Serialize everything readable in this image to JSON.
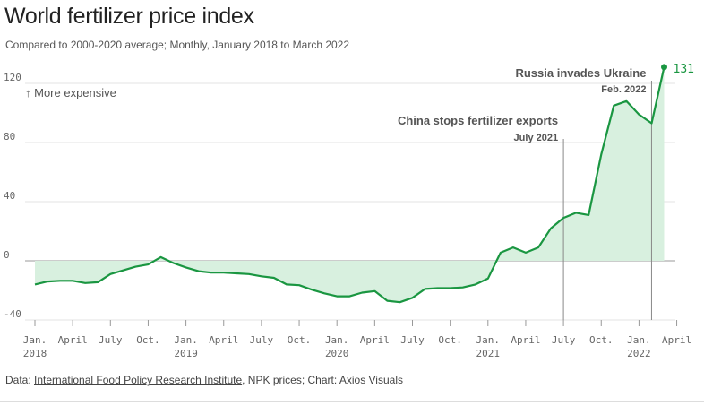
{
  "chart_data": {
    "type": "area",
    "title": "World fertilizer price index",
    "subtitle": "Compared to 2000-2020 average; Monthly, January 2018 to March 2022",
    "ylim": [
      -40,
      135
    ],
    "yticks": [
      -40,
      0,
      40,
      80,
      120
    ],
    "grid": true,
    "colors": {
      "line": "#1a9641",
      "fill": "#d8f0df",
      "marker": "#1a9641"
    },
    "x_tick_labels": [
      {
        "x": "2018-01",
        "label": "Jan.",
        "year": "2018"
      },
      {
        "x": "2018-04",
        "label": "April"
      },
      {
        "x": "2018-07",
        "label": "July"
      },
      {
        "x": "2018-10",
        "label": "Oct."
      },
      {
        "x": "2019-01",
        "label": "Jan.",
        "year": "2019"
      },
      {
        "x": "2019-04",
        "label": "April"
      },
      {
        "x": "2019-07",
        "label": "July"
      },
      {
        "x": "2019-10",
        "label": "Oct."
      },
      {
        "x": "2020-01",
        "label": "Jan.",
        "year": "2020"
      },
      {
        "x": "2020-04",
        "label": "April"
      },
      {
        "x": "2020-07",
        "label": "July"
      },
      {
        "x": "2020-10",
        "label": "Oct."
      },
      {
        "x": "2021-01",
        "label": "Jan.",
        "year": "2021"
      },
      {
        "x": "2021-04",
        "label": "April"
      },
      {
        "x": "2021-07",
        "label": "July"
      },
      {
        "x": "2021-10",
        "label": "Oct."
      },
      {
        "x": "2022-01",
        "label": "Jan.",
        "year": "2022"
      },
      {
        "x": "2022-04",
        "label": "April"
      }
    ],
    "series": [
      {
        "x": [
          "2018-01",
          "2018-02",
          "2018-03",
          "2018-04",
          "2018-05",
          "2018-06",
          "2018-07",
          "2018-08",
          "2018-09",
          "2018-10",
          "2018-11",
          "2018-12",
          "2019-01",
          "2019-02",
          "2019-03",
          "2019-04",
          "2019-05",
          "2019-06",
          "2019-07",
          "2019-08",
          "2019-09",
          "2019-10",
          "2019-11",
          "2019-12",
          "2020-01",
          "2020-02",
          "2020-03",
          "2020-04",
          "2020-05",
          "2020-06",
          "2020-07",
          "2020-08",
          "2020-09",
          "2020-10",
          "2020-11",
          "2020-12",
          "2021-01",
          "2021-02",
          "2021-03",
          "2021-04",
          "2021-05",
          "2021-06",
          "2021-07",
          "2021-08",
          "2021-09",
          "2021-10",
          "2021-11",
          "2021-12",
          "2022-01",
          "2022-02",
          "2022-03"
        ],
        "values": [
          -16,
          -14,
          -13.5,
          -13.5,
          -15,
          -14.5,
          -9,
          -6.5,
          -4,
          -2.5,
          2.5,
          -1.5,
          -4.5,
          -7,
          -8,
          -8,
          -8.5,
          -9,
          -10.5,
          -11.5,
          -16,
          -16.5,
          -19.5,
          -22,
          -24,
          -24,
          -21.5,
          -20.5,
          -27,
          -28,
          -25,
          -19,
          -18.5,
          -18.5,
          -18,
          -16,
          -12,
          5.5,
          9,
          5.5,
          9,
          22,
          29,
          32.5,
          31,
          72,
          105,
          108,
          99,
          93,
          131
        ]
      }
    ],
    "annotations": [
      {
        "x": "2021-07",
        "title": "China stops fertilizer exports",
        "date": "July 2021"
      },
      {
        "x": "2022-02",
        "title": "Russia invades Ukraine",
        "date": "Feb. 2022"
      }
    ],
    "note": "↑ More expensive",
    "last_value_label": "131",
    "source": {
      "prefix": "Data: ",
      "link_text": "International Food Policy Research Institute",
      "suffix": ", NPK prices; Chart: Axios Visuals"
    }
  }
}
